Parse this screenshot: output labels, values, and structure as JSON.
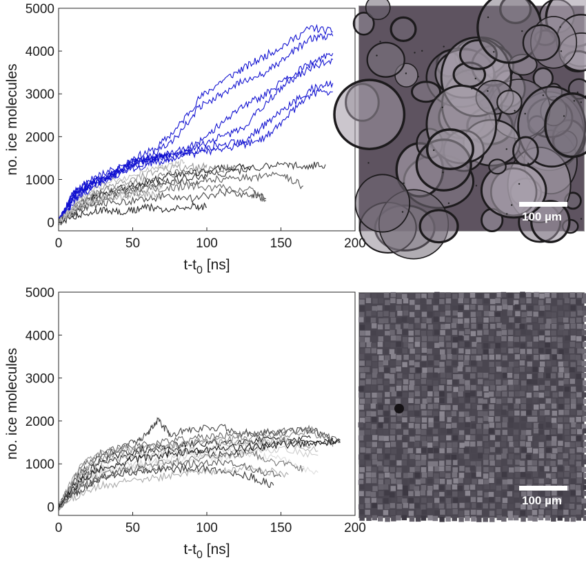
{
  "chart_data": [
    {
      "type": "line",
      "xlabel": "t-t",
      "xlabel_sub": "0",
      "xlabel_unit": " [ns]",
      "ylabel": "no. ice molecules",
      "xlim": [
        0,
        200
      ],
      "ylim": [
        -200,
        5000
      ],
      "xticks": [
        "0",
        "50",
        "100",
        "150",
        "200"
      ],
      "yticks": [
        "0",
        "1000",
        "2000",
        "3000",
        "4000",
        "5000"
      ],
      "grid": false,
      "series": [
        {
          "color": "#1010d0",
          "x": [
            0,
            10,
            20,
            35,
            50,
            65,
            80,
            95,
            110,
            125,
            140,
            155,
            170,
            185
          ],
          "y": [
            0,
            700,
            900,
            1100,
            1500,
            1700,
            2200,
            2900,
            3300,
            3600,
            3900,
            4200,
            4550,
            4450
          ]
        },
        {
          "color": "#1010d0",
          "x": [
            0,
            10,
            20,
            35,
            50,
            65,
            80,
            95,
            110,
            125,
            140,
            155,
            170,
            185
          ],
          "y": [
            0,
            650,
            850,
            1100,
            1350,
            1600,
            2000,
            2700,
            3000,
            3300,
            3500,
            3900,
            4300,
            4350
          ]
        },
        {
          "color": "#1010d0",
          "x": [
            0,
            10,
            20,
            35,
            50,
            65,
            80,
            95,
            110,
            125,
            140,
            155,
            170,
            185
          ],
          "y": [
            0,
            600,
            850,
            1050,
            1400,
            1500,
            1650,
            1900,
            2300,
            2700,
            3000,
            3400,
            3700,
            3950
          ]
        },
        {
          "color": "#1010d0",
          "x": [
            0,
            10,
            20,
            35,
            50,
            65,
            80,
            95,
            110,
            125,
            140,
            155,
            170,
            185
          ],
          "y": [
            0,
            700,
            950,
            1200,
            1400,
            1500,
            1600,
            1800,
            2000,
            2200,
            2800,
            3300,
            3600,
            3800
          ]
        },
        {
          "color": "#1010d0",
          "x": [
            0,
            10,
            20,
            35,
            50,
            65,
            80,
            95,
            110,
            125,
            140,
            155,
            170,
            185
          ],
          "y": [
            0,
            500,
            800,
            1100,
            1300,
            1450,
            1550,
            1700,
            1800,
            1900,
            2300,
            2700,
            3100,
            3250
          ]
        },
        {
          "color": "#1010d0",
          "x": [
            0,
            10,
            20,
            35,
            50,
            65,
            80,
            95,
            110,
            125,
            140,
            155,
            170,
            185
          ],
          "y": [
            0,
            450,
            750,
            1000,
            1250,
            1400,
            1500,
            1600,
            1700,
            1800,
            2000,
            2500,
            3000,
            3050
          ]
        },
        {
          "color": "#1010d0",
          "x": [
            0,
            10,
            20,
            35,
            50,
            65,
            75
          ],
          "y": [
            0,
            550,
            850,
            1150,
            1400,
            1500,
            1550
          ]
        },
        {
          "color": "#111111",
          "x": [
            0,
            15,
            30,
            50,
            70,
            90,
            110,
            130
          ],
          "y": [
            0,
            400,
            700,
            850,
            1050,
            1150,
            1250,
            1300
          ]
        },
        {
          "color": "#333333",
          "x": [
            0,
            15,
            30,
            50,
            70,
            90,
            110,
            130,
            150,
            165,
            180
          ],
          "y": [
            0,
            450,
            650,
            800,
            950,
            1050,
            1150,
            1250,
            1350,
            1300,
            1350
          ]
        },
        {
          "color": "#555555",
          "x": [
            0,
            15,
            30,
            50,
            70,
            90,
            110,
            130,
            150,
            165
          ],
          "y": [
            0,
            350,
            600,
            750,
            900,
            950,
            1000,
            1050,
            1100,
            850
          ]
        },
        {
          "color": "#777777",
          "x": [
            0,
            15,
            30,
            50,
            70,
            90,
            110,
            120
          ],
          "y": [
            0,
            500,
            750,
            900,
            1100,
            1200,
            1250,
            1300
          ]
        },
        {
          "color": "#999999",
          "x": [
            0,
            15,
            30,
            50,
            70,
            90,
            100
          ],
          "y": [
            0,
            500,
            800,
            1000,
            1250,
            1300,
            1350
          ]
        },
        {
          "color": "#bbbbbb",
          "x": [
            0,
            15,
            30,
            50,
            70,
            85
          ],
          "y": [
            0,
            550,
            900,
            1100,
            1300,
            1400
          ]
        },
        {
          "color": "#222222",
          "x": [
            0,
            15,
            30,
            45,
            60,
            75,
            90,
            100
          ],
          "y": [
            0,
            200,
            300,
            250,
            350,
            300,
            400,
            350
          ]
        },
        {
          "color": "#444444",
          "x": [
            0,
            15,
            30,
            50,
            70,
            90,
            110,
            130,
            140
          ],
          "y": [
            0,
            300,
            450,
            500,
            600,
            550,
            700,
            650,
            550
          ]
        },
        {
          "color": "#666666",
          "x": [
            0,
            15,
            30,
            50,
            70,
            90,
            110,
            130,
            140
          ],
          "y": [
            0,
            350,
            550,
            700,
            800,
            850,
            800,
            750,
            500
          ]
        },
        {
          "color": "#aaaaaa",
          "x": [
            0,
            15,
            30,
            45,
            60,
            70
          ],
          "y": [
            0,
            350,
            550,
            600,
            650,
            600
          ]
        },
        {
          "color": "#cccccc",
          "x": [
            0,
            15,
            30,
            50,
            70
          ],
          "y": [
            0,
            400,
            600,
            750,
            800
          ]
        }
      ]
    },
    {
      "type": "line",
      "xlabel": "t-t",
      "xlabel_sub": "0",
      "xlabel_unit": " [ns]",
      "ylabel": "no. ice molecules",
      "xlim": [
        0,
        200
      ],
      "ylim": [
        -200,
        5000
      ],
      "xticks": [
        "0",
        "50",
        "100",
        "150",
        "200"
      ],
      "yticks": [
        "0",
        "1000",
        "2000",
        "3000",
        "4000",
        "5000"
      ],
      "grid": false,
      "series": [
        {
          "color": "#111111",
          "x": [
            0,
            15,
            30,
            50,
            70,
            90,
            110,
            130,
            150,
            170,
            190
          ],
          "y": [
            0,
            700,
            1100,
            1300,
            1400,
            1450,
            1500,
            1550,
            1550,
            1500,
            1500
          ]
        },
        {
          "color": "#444444",
          "x": [
            0,
            15,
            30,
            50,
            60,
            67,
            75,
            90,
            110,
            130,
            150,
            170,
            185
          ],
          "y": [
            0,
            800,
            1200,
            1500,
            1700,
            2000,
            1700,
            1800,
            1850,
            1700,
            1750,
            1800,
            1600
          ]
        },
        {
          "color": "#222222",
          "x": [
            0,
            15,
            30,
            50,
            70,
            90,
            110,
            130,
            150,
            170
          ],
          "y": [
            0,
            600,
            1000,
            1200,
            1300,
            1250,
            1200,
            1300,
            1500,
            1600
          ]
        },
        {
          "color": "#666666",
          "x": [
            0,
            15,
            30,
            50,
            70,
            90,
            110,
            130,
            150,
            170,
            190
          ],
          "y": [
            0,
            900,
            1300,
            1400,
            1500,
            1600,
            1650,
            1700,
            1750,
            1800,
            1500
          ]
        },
        {
          "color": "#888888",
          "x": [
            0,
            15,
            30,
            50,
            70,
            90,
            110,
            130,
            150,
            170,
            185
          ],
          "y": [
            0,
            800,
            1150,
            1300,
            1400,
            1500,
            1550,
            1600,
            1650,
            1800,
            1400
          ]
        },
        {
          "color": "#999999",
          "x": [
            0,
            15,
            30,
            50,
            70,
            90,
            110,
            130,
            150,
            170
          ],
          "y": [
            0,
            1000,
            1300,
            1350,
            1400,
            1450,
            1500,
            1500,
            1550,
            1400
          ]
        },
        {
          "color": "#bbbbbb",
          "x": [
            0,
            15,
            30,
            50,
            70,
            90,
            110,
            130,
            150,
            175
          ],
          "y": [
            0,
            700,
            1000,
            1150,
            1250,
            1300,
            1400,
            1450,
            1500,
            1300
          ]
        },
        {
          "color": "#cccccc",
          "x": [
            0,
            15,
            30,
            50,
            70,
            90,
            110,
            130,
            150,
            175
          ],
          "y": [
            0,
            600,
            900,
            1000,
            1100,
            1200,
            1300,
            1300,
            1350,
            1200
          ]
        },
        {
          "color": "#dddddd",
          "x": [
            0,
            15,
            30,
            50,
            70,
            90,
            110,
            130,
            150,
            175
          ],
          "y": [
            0,
            500,
            800,
            900,
            1000,
            1100,
            1150,
            1200,
            1100,
            800
          ]
        },
        {
          "color": "#333333",
          "x": [
            0,
            15,
            30,
            50,
            70,
            90,
            110,
            130,
            145
          ],
          "y": [
            0,
            400,
            700,
            800,
            850,
            900,
            850,
            700,
            500
          ]
        },
        {
          "color": "#555555",
          "x": [
            0,
            15,
            30,
            50,
            70,
            90,
            110,
            130,
            150
          ],
          "y": [
            0,
            450,
            700,
            850,
            900,
            1000,
            1050,
            900,
            700
          ]
        },
        {
          "color": "#777777",
          "x": [
            0,
            15,
            30,
            50,
            70,
            90,
            110,
            130,
            150,
            165
          ],
          "y": [
            0,
            500,
            750,
            900,
            1000,
            1100,
            1200,
            1250,
            1000,
            900
          ]
        },
        {
          "color": "#aaaaaa",
          "x": [
            0,
            15,
            30,
            50,
            70,
            90,
            110,
            130,
            155
          ],
          "y": [
            0,
            300,
            500,
            600,
            700,
            800,
            850,
            900,
            750
          ]
        },
        {
          "color": "#1a1a1a",
          "x": [
            0,
            15,
            30,
            50,
            70,
            90,
            110,
            130,
            150,
            170,
            190
          ],
          "y": [
            0,
            600,
            900,
            1100,
            1200,
            1300,
            1350,
            1400,
            1450,
            1450,
            1550
          ]
        }
      ]
    }
  ],
  "images": [
    {
      "scale_label": "100 µm",
      "description_kind": "coarse polycrystalline ice microscopy"
    },
    {
      "scale_label": "100 µm",
      "description_kind": "fine polycrystalline ice microscopy"
    }
  ]
}
